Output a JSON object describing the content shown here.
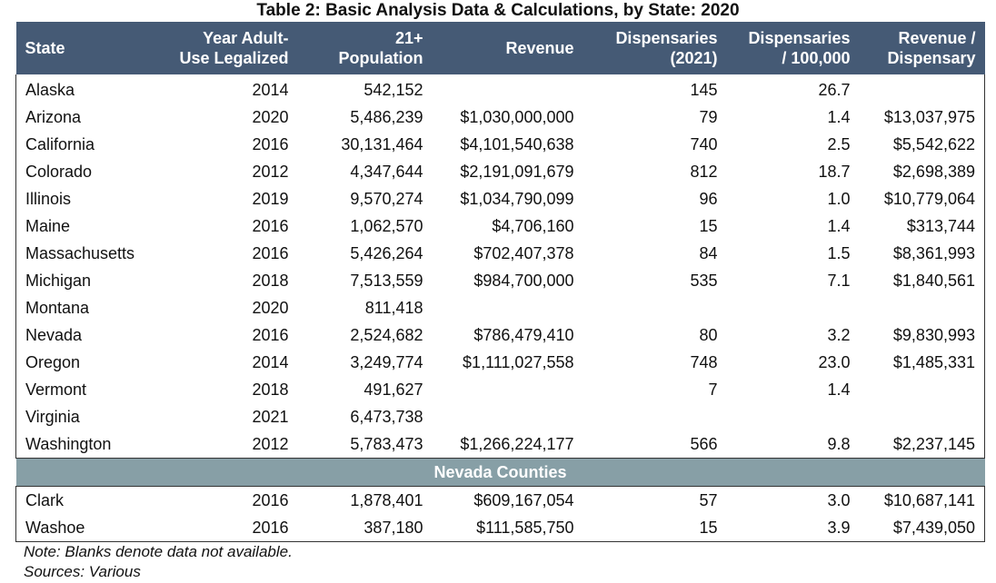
{
  "title": "Table 2: Basic Analysis Data & Calculations, by State: 2020",
  "headers": [
    [
      "State"
    ],
    [
      "Year Adult-",
      "Use Legalized"
    ],
    [
      "21+",
      "Population"
    ],
    [
      "Revenue"
    ],
    [
      "Dispensaries",
      "(2021)"
    ],
    [
      "Dispensaries",
      "/ 100,000"
    ],
    [
      "Revenue /",
      "Dispensary"
    ]
  ],
  "rows": [
    [
      "Alaska",
      "2014",
      "542,152",
      "",
      "145",
      "26.7",
      ""
    ],
    [
      "Arizona",
      "2020",
      "5,486,239",
      "$1,030,000,000",
      "79",
      "1.4",
      "$13,037,975"
    ],
    [
      "California",
      "2016",
      "30,131,464",
      "$4,101,540,638",
      "740",
      "2.5",
      "$5,542,622"
    ],
    [
      "Colorado",
      "2012",
      "4,347,644",
      "$2,191,091,679",
      "812",
      "18.7",
      "$2,698,389"
    ],
    [
      "Illinois",
      "2019",
      "9,570,274",
      "$1,034,790,099",
      "96",
      "1.0",
      "$10,779,064"
    ],
    [
      "Maine",
      "2016",
      "1,062,570",
      "$4,706,160",
      "15",
      "1.4",
      "$313,744"
    ],
    [
      "Massachusetts",
      "2016",
      "5,426,264",
      "$702,407,378",
      "84",
      "1.5",
      "$8,361,993"
    ],
    [
      "Michigan",
      "2018",
      "7,513,559",
      "$984,700,000",
      "535",
      "7.1",
      "$1,840,561"
    ],
    [
      "Montana",
      "2020",
      "811,418",
      "",
      "",
      "",
      ""
    ],
    [
      "Nevada",
      "2016",
      "2,524,682",
      "$786,479,410",
      "80",
      "3.2",
      "$9,830,993"
    ],
    [
      "Oregon",
      "2014",
      "3,249,774",
      "$1,111,027,558",
      "748",
      "23.0",
      "$1,485,331"
    ],
    [
      "Vermont",
      "2018",
      "491,627",
      "",
      "7",
      "1.4",
      ""
    ],
    [
      "Virginia",
      "2021",
      "6,473,738",
      "",
      "",
      "",
      ""
    ],
    [
      "Washington",
      "2012",
      "5,783,473",
      "$1,266,224,177",
      "566",
      "9.8",
      "$2,237,145"
    ]
  ],
  "section_label": "Nevada Counties",
  "county_rows": [
    [
      "Clark",
      "2016",
      "1,878,401",
      "$609,167,054",
      "57",
      "3.0",
      "$10,687,141"
    ],
    [
      "Washoe",
      "2016",
      "387,180",
      "$111,585,750",
      "15",
      "3.9",
      "$7,439,050"
    ]
  ],
  "notes": {
    "note": "Note: Blanks denote data not available.",
    "sources": "Sources: Various"
  },
  "colors": {
    "header_bg": "#455a75",
    "section_bg": "#879fa6"
  }
}
